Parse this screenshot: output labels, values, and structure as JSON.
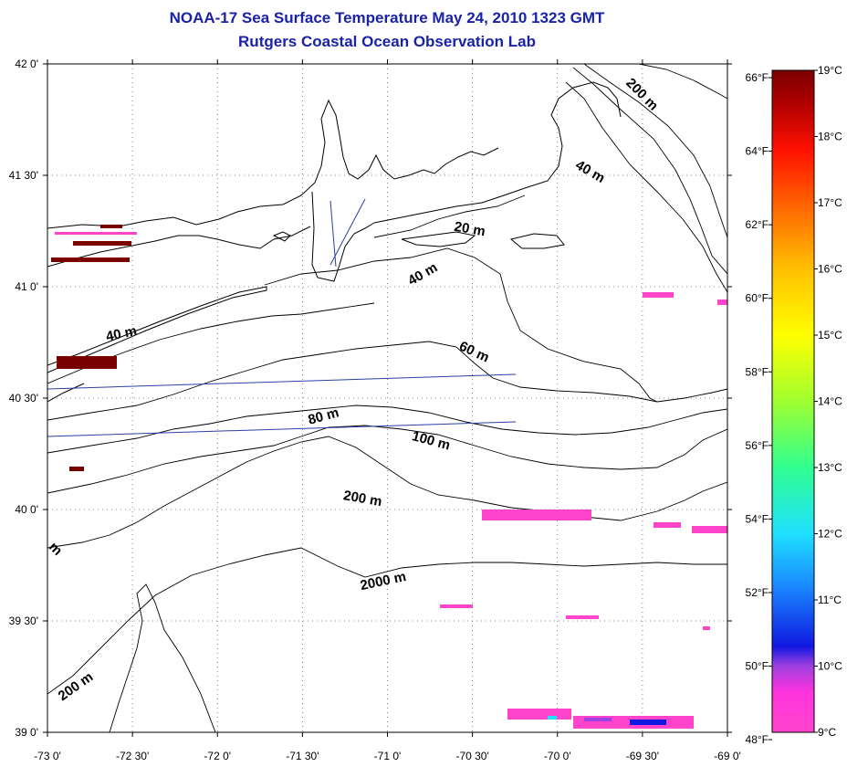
{
  "title": {
    "line1": "NOAA-17 Sea Surface Temperature May 24, 2010 1323 GMT",
    "line2": "Rutgers Coastal Ocean Observation Lab"
  },
  "map": {
    "lon_range": [
      -73.0,
      -69.0
    ],
    "lat_range": [
      39.0,
      42.0
    ],
    "grid": "dotted",
    "lon_ticks": [
      {
        "value": -73.0,
        "label": "-73 0'"
      },
      {
        "value": -72.5,
        "label": "-72 30'"
      },
      {
        "value": -72.0,
        "label": "-72 0'"
      },
      {
        "value": -71.5,
        "label": "-71 30'"
      },
      {
        "value": -71.0,
        "label": "-71 0'"
      },
      {
        "value": -70.5,
        "label": "-70 30'"
      },
      {
        "value": -70.0,
        "label": "-70 0'"
      },
      {
        "value": -69.5,
        "label": "-69 30'"
      },
      {
        "value": -69.0,
        "label": "-69 0'"
      }
    ],
    "lat_ticks": [
      {
        "value": 42.0,
        "label": "42 0'"
      },
      {
        "value": 41.5,
        "label": "41 30'"
      },
      {
        "value": 41.0,
        "label": "41 0'"
      },
      {
        "value": 40.5,
        "label": "40 30'"
      },
      {
        "value": 40.0,
        "label": "40 0'"
      },
      {
        "value": 39.5,
        "label": "39 30'"
      },
      {
        "value": 39.0,
        "label": "39 0'"
      }
    ],
    "contour_labels": [
      {
        "text": "200 m",
        "lon": -69.52,
        "lat": 41.85,
        "angle": 45
      },
      {
        "text": "40 m",
        "lon": -69.82,
        "lat": 41.5,
        "angle": 30
      },
      {
        "text": "20 m",
        "lon": -70.52,
        "lat": 41.24,
        "angle": 10
      },
      {
        "text": "40 m",
        "lon": -70.78,
        "lat": 41.04,
        "angle": -30
      },
      {
        "text": "40 m",
        "lon": -72.56,
        "lat": 40.77,
        "angle": -12
      },
      {
        "text": "60 m",
        "lon": -70.5,
        "lat": 40.69,
        "angle": 25
      },
      {
        "text": "80 m",
        "lon": -71.37,
        "lat": 40.4,
        "angle": -15
      },
      {
        "text": "100 m",
        "lon": -70.75,
        "lat": 40.29,
        "angle": 15
      },
      {
        "text": "200 m",
        "lon": -71.15,
        "lat": 40.03,
        "angle": 10
      },
      {
        "text": "2000 m",
        "lon": -71.02,
        "lat": 39.66,
        "angle": -12
      },
      {
        "text": "200 m",
        "lon": -72.82,
        "lat": 39.19,
        "angle": -35
      },
      {
        "text": "m",
        "lon": -72.97,
        "lat": 39.81,
        "angle": 45
      }
    ]
  },
  "colorbar": {
    "range_c": [
      9,
      19
    ],
    "colors": [
      "#ff44cc",
      "#a040e0",
      "#1018e0",
      "#1a88ff",
      "#20e0ff",
      "#30ff90",
      "#a0ff30",
      "#ffff00",
      "#ffc000",
      "#ff6000",
      "#ff1000",
      "#b00000",
      "#7a0000"
    ],
    "celsius_ticks": [
      {
        "value": 19,
        "label": "19°C"
      },
      {
        "value": 18,
        "label": "18°C"
      },
      {
        "value": 17,
        "label": "17°C"
      },
      {
        "value": 16,
        "label": "16°C"
      },
      {
        "value": 15,
        "label": "15°C"
      },
      {
        "value": 14,
        "label": "14°C"
      },
      {
        "value": 13,
        "label": "13°C"
      },
      {
        "value": 12,
        "label": "12°C"
      },
      {
        "value": 11,
        "label": "11°C"
      },
      {
        "value": 10,
        "label": "10°C"
      },
      {
        "value": 9,
        "label": "9°C"
      }
    ],
    "fahrenheit_ticks": [
      {
        "value": 66,
        "label": "66°F"
      },
      {
        "value": 64,
        "label": "64°F"
      },
      {
        "value": 62,
        "label": "62°F"
      },
      {
        "value": 60,
        "label": "60°F"
      },
      {
        "value": 58,
        "label": "58°F"
      },
      {
        "value": 56,
        "label": "56°F"
      },
      {
        "value": 54,
        "label": "54°F"
      },
      {
        "value": 52,
        "label": "52°F"
      },
      {
        "value": 50,
        "label": "50°F"
      },
      {
        "value": 48,
        "label": "48°F"
      }
    ]
  }
}
